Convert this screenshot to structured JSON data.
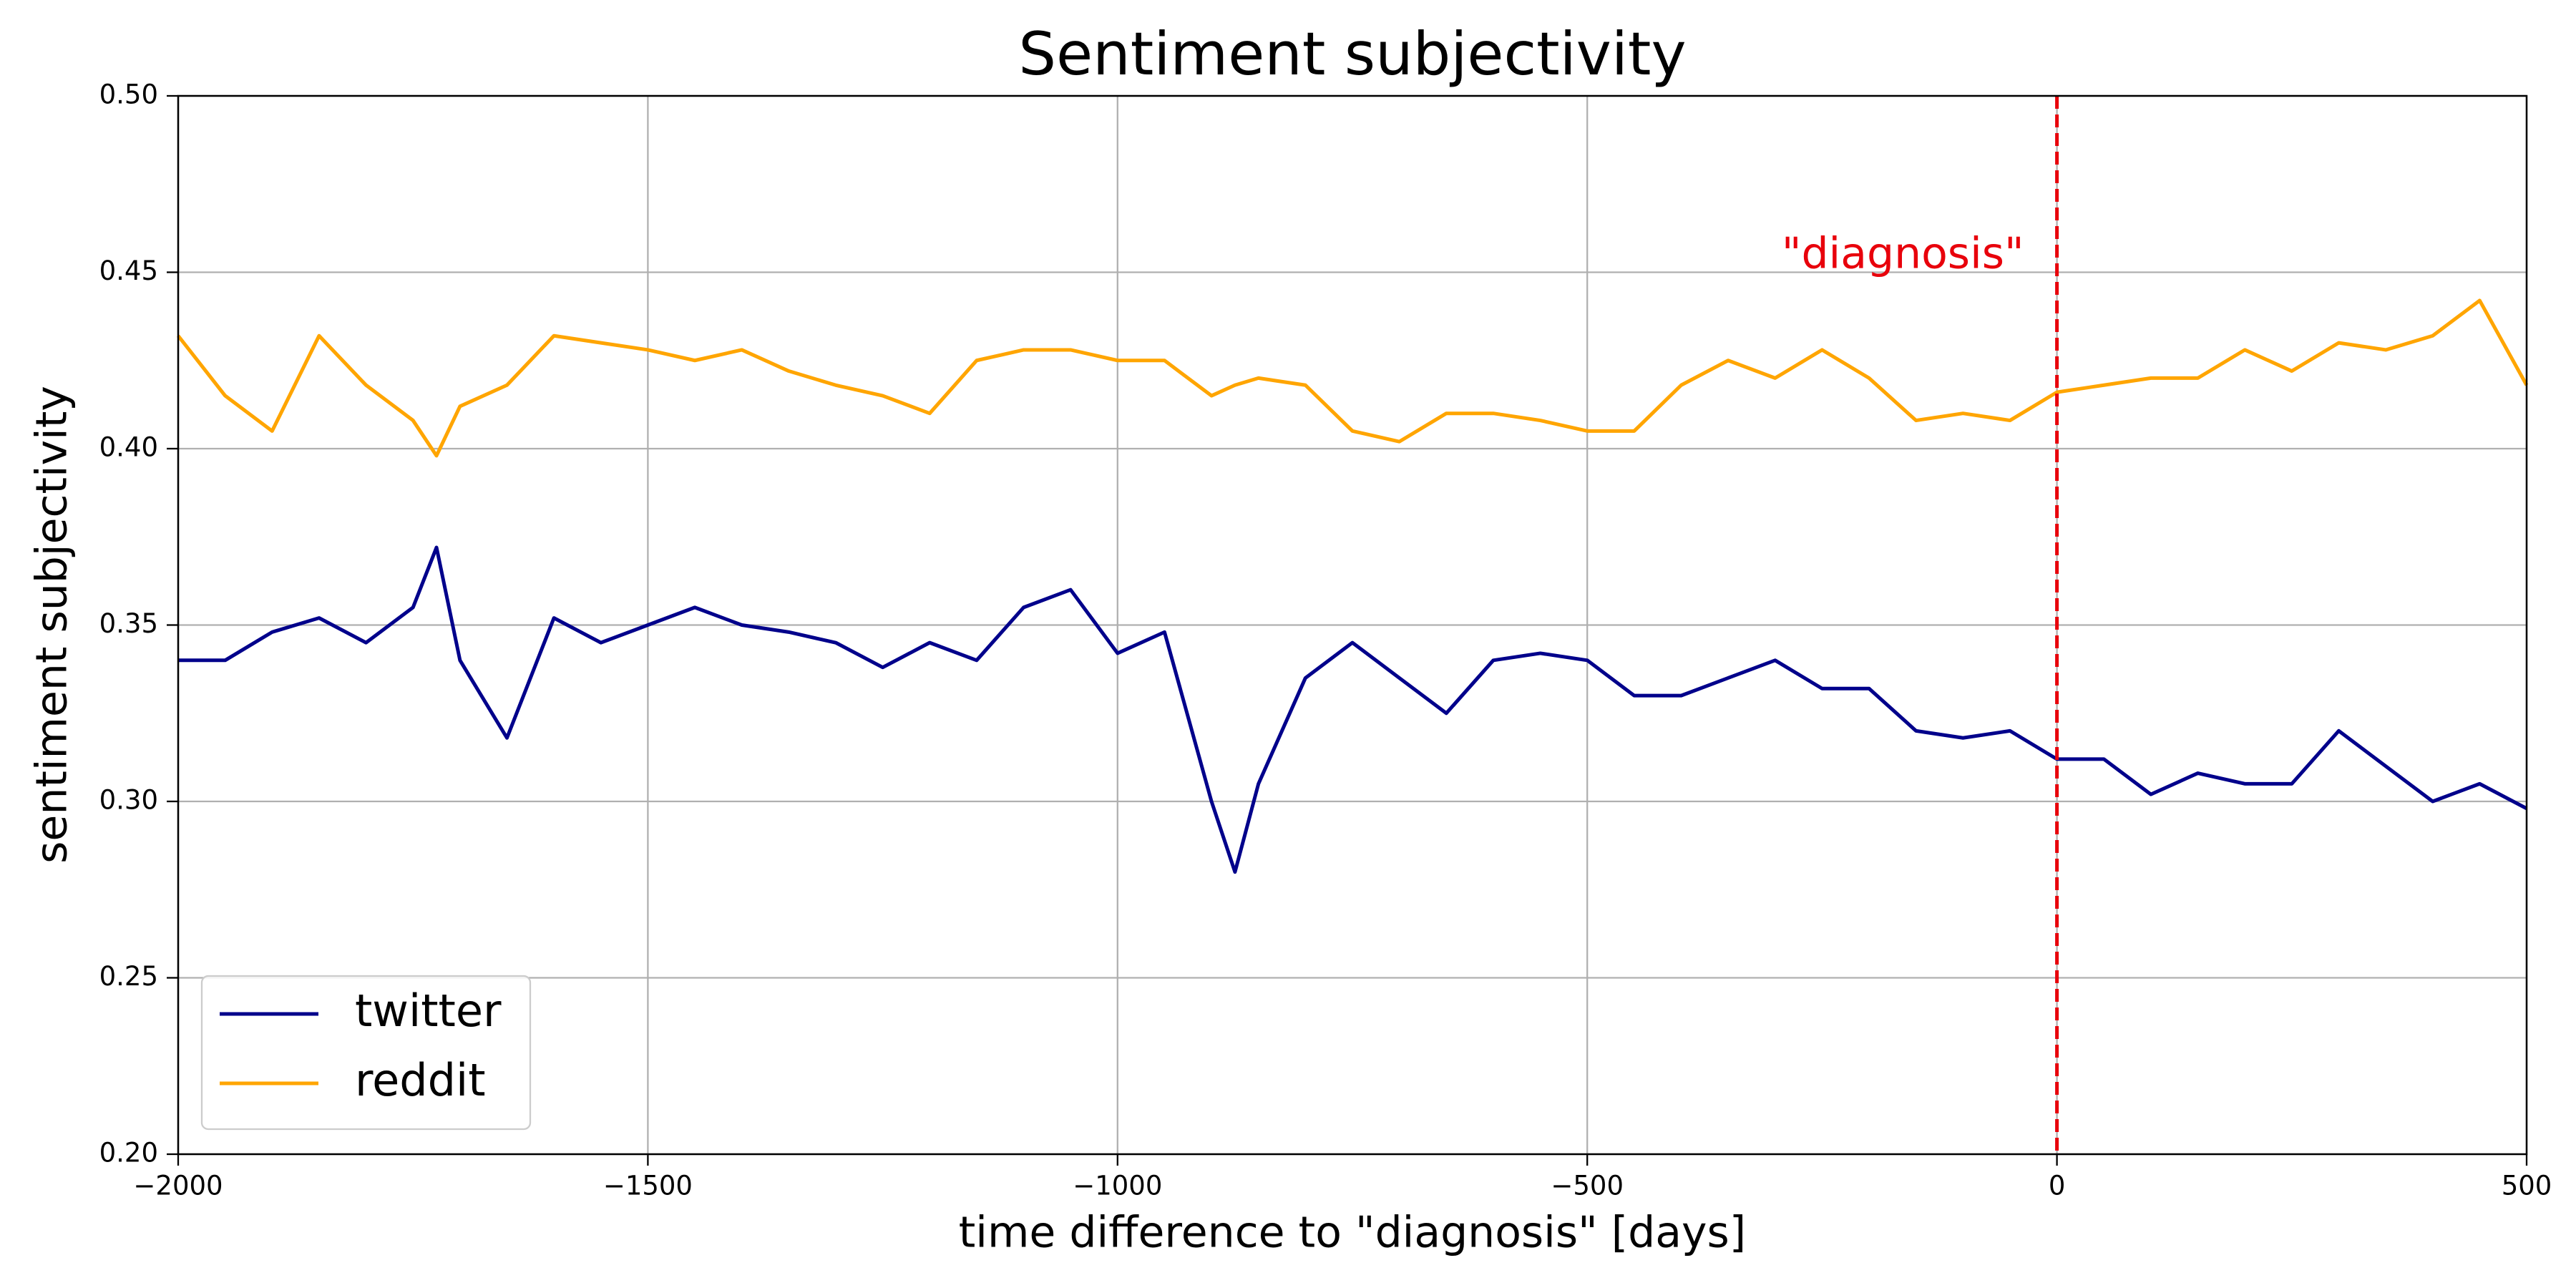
{
  "chart_data": {
    "type": "line",
    "title": "Sentiment subjectivity",
    "xlabel": "time difference to \"diagnosis\" [days]",
    "ylabel": "sentiment subjectivity",
    "x": [
      -2000,
      -1950,
      -1900,
      -1850,
      -1800,
      -1750,
      -1725,
      -1700,
      -1650,
      -1600,
      -1550,
      -1500,
      -1450,
      -1400,
      -1350,
      -1300,
      -1250,
      -1200,
      -1150,
      -1100,
      -1050,
      -1000,
      -950,
      -900,
      -875,
      -850,
      -800,
      -750,
      -700,
      -650,
      -600,
      -550,
      -500,
      -450,
      -400,
      -350,
      -300,
      -250,
      -200,
      -150,
      -100,
      -50,
      0,
      50,
      100,
      150,
      200,
      250,
      300,
      350,
      400,
      450,
      500
    ],
    "series": [
      {
        "name": "twitter",
        "color": "#00008b",
        "values": [
          0.34,
          0.34,
          0.348,
          0.352,
          0.345,
          0.355,
          0.372,
          0.34,
          0.318,
          0.352,
          0.345,
          0.35,
          0.355,
          0.35,
          0.348,
          0.345,
          0.338,
          0.345,
          0.34,
          0.355,
          0.36,
          0.342,
          0.348,
          0.3,
          0.28,
          0.305,
          0.335,
          0.345,
          0.335,
          0.325,
          0.34,
          0.342,
          0.34,
          0.33,
          0.33,
          0.335,
          0.34,
          0.332,
          0.332,
          0.32,
          0.318,
          0.32,
          0.312,
          0.312,
          0.302,
          0.308,
          0.305,
          0.305,
          0.32,
          0.31,
          0.3,
          0.305,
          0.298
        ]
      },
      {
        "name": "reddit",
        "color": "#ffa500",
        "values": [
          0.432,
          0.415,
          0.405,
          0.432,
          0.418,
          0.408,
          0.398,
          0.412,
          0.418,
          0.432,
          0.43,
          0.428,
          0.425,
          0.428,
          0.422,
          0.418,
          0.415,
          0.41,
          0.425,
          0.428,
          0.428,
          0.425,
          0.425,
          0.415,
          0.418,
          0.42,
          0.418,
          0.405,
          0.402,
          0.41,
          0.41,
          0.408,
          0.405,
          0.405,
          0.418,
          0.425,
          0.42,
          0.428,
          0.42,
          0.408,
          0.41,
          0.408,
          0.416,
          0.418,
          0.42,
          0.42,
          0.428,
          0.422,
          0.43,
          0.428,
          0.432,
          0.442,
          0.418
        ]
      }
    ],
    "xlim": [
      -2000,
      500
    ],
    "xticks": [
      {
        "value": -2000,
        "label": "−2000"
      },
      {
        "value": -1500,
        "label": "−1500"
      },
      {
        "value": -1000,
        "label": "−1000"
      },
      {
        "value": -500,
        "label": "−500"
      },
      0,
      500
    ],
    "ylim": [
      0.2,
      0.5
    ],
    "yticks": [
      {
        "value": 0.2,
        "label": "0.20"
      },
      {
        "value": 0.25,
        "label": "0.25"
      },
      {
        "value": 0.3,
        "label": "0.30"
      },
      {
        "value": 0.35,
        "label": "0.35"
      },
      {
        "value": 0.4,
        "label": "0.40"
      },
      {
        "value": 0.45,
        "label": "0.45"
      },
      {
        "value": 0.5,
        "label": "0.50"
      }
    ],
    "grid": true,
    "legend": "lower left",
    "vline": {
      "x": 0,
      "color": "#e8000b",
      "label": "\"diagnosis\""
    }
  }
}
